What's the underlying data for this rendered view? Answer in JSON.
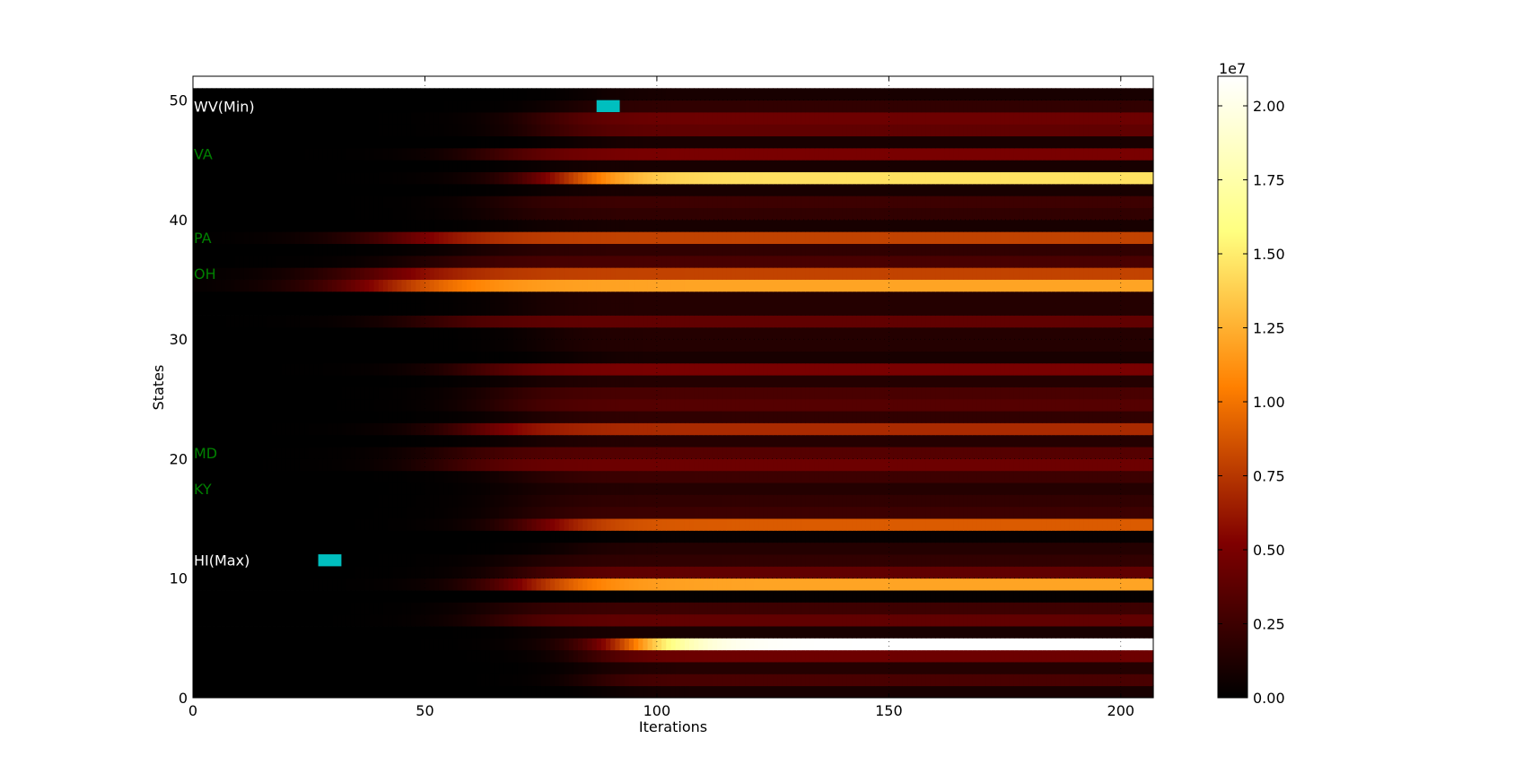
{
  "chart_data": {
    "type": "heatmap",
    "title": "",
    "xlabel": "Iterations",
    "ylabel": "States",
    "xlim": [
      0,
      207
    ],
    "ylim": [
      0,
      52
    ],
    "x_ticks": [
      "0",
      "50",
      "100",
      "150",
      "200"
    ],
    "y_ticks": [
      "0",
      "10",
      "20",
      "30",
      "40",
      "50"
    ],
    "grid": true,
    "colormap": "afmhot",
    "colorbar": {
      "exponent_label": "1e7",
      "min": 0,
      "max": 21000000,
      "ticks": [
        "0.00",
        "0.25",
        "0.50",
        "0.75",
        "1.00",
        "1.25",
        "1.50",
        "1.75",
        "2.00"
      ]
    },
    "rows": [
      {
        "state": 0,
        "final": 1000000,
        "onset": 90,
        "width": 30
      },
      {
        "state": 1,
        "final": 3000000,
        "onset": 85,
        "width": 30
      },
      {
        "state": 2,
        "final": 1500000,
        "onset": 85,
        "width": 30
      },
      {
        "state": 3,
        "final": 4500000,
        "onset": 85,
        "width": 30
      },
      {
        "state": 4,
        "final": 21000000,
        "onset": 95,
        "width": 40
      },
      {
        "state": 5,
        "final": 1000000,
        "onset": 75,
        "width": 30
      },
      {
        "state": 6,
        "final": 4000000,
        "onset": 65,
        "width": 40
      },
      {
        "state": 7,
        "final": 2500000,
        "onset": 65,
        "width": 40
      },
      {
        "state": 8,
        "final": 200000,
        "onset": 90,
        "width": 30
      },
      {
        "state": 9,
        "final": 12000000,
        "onset": 72,
        "width": 45
      },
      {
        "state": 10,
        "final": 4000000,
        "onset": 70,
        "width": 40
      },
      {
        "state": 11,
        "final": 2000000,
        "onset": 70,
        "width": 40
      },
      {
        "state": 12,
        "final": 1500000,
        "onset": 80,
        "width": 30
      },
      {
        "state": 13,
        "final": 300000,
        "onset": 90,
        "width": 30
      },
      {
        "state": 14,
        "final": 9000000,
        "onset": 75,
        "width": 40
      },
      {
        "state": 15,
        "final": 2500000,
        "onset": 70,
        "width": 40
      },
      {
        "state": 16,
        "final": 2000000,
        "onset": 70,
        "width": 40
      },
      {
        "state": 17,
        "final": 1500000,
        "onset": 70,
        "width": 40
      },
      {
        "state": 18,
        "final": 2500000,
        "onset": 70,
        "width": 40
      },
      {
        "state": 19,
        "final": 4500000,
        "onset": 55,
        "width": 45
      },
      {
        "state": 20,
        "final": 3500000,
        "onset": 55,
        "width": 45
      },
      {
        "state": 21,
        "final": 1500000,
        "onset": 70,
        "width": 40
      },
      {
        "state": 22,
        "final": 7000000,
        "onset": 60,
        "width": 45
      },
      {
        "state": 23,
        "final": 2000000,
        "onset": 70,
        "width": 40
      },
      {
        "state": 24,
        "final": 3500000,
        "onset": 65,
        "width": 40
      },
      {
        "state": 25,
        "final": 3000000,
        "onset": 65,
        "width": 40
      },
      {
        "state": 26,
        "final": 1500000,
        "onset": 70,
        "width": 40
      },
      {
        "state": 27,
        "final": 5000000,
        "onset": 60,
        "width": 45
      },
      {
        "state": 28,
        "final": 1000000,
        "onset": 80,
        "width": 30
      },
      {
        "state": 29,
        "final": 1500000,
        "onset": 75,
        "width": 35
      },
      {
        "state": 30,
        "final": 1500000,
        "onset": 75,
        "width": 35
      },
      {
        "state": 31,
        "final": 4000000,
        "onset": 50,
        "width": 50
      },
      {
        "state": 32,
        "final": 1500000,
        "onset": 70,
        "width": 40
      },
      {
        "state": 33,
        "final": 1500000,
        "onset": 70,
        "width": 40
      },
      {
        "state": 34,
        "final": 12000000,
        "onset": 40,
        "width": 60
      },
      {
        "state": 35,
        "final": 8000000,
        "onset": 40,
        "width": 60
      },
      {
        "state": 36,
        "final": 3000000,
        "onset": 50,
        "width": 50
      },
      {
        "state": 37,
        "final": 2000000,
        "onset": 60,
        "width": 45
      },
      {
        "state": 38,
        "final": 8000000,
        "onset": 45,
        "width": 55
      },
      {
        "state": 39,
        "final": 1000000,
        "onset": 70,
        "width": 40
      },
      {
        "state": 40,
        "final": 2000000,
        "onset": 65,
        "width": 40
      },
      {
        "state": 41,
        "final": 2500000,
        "onset": 65,
        "width": 40
      },
      {
        "state": 42,
        "final": 1000000,
        "onset": 75,
        "width": 35
      },
      {
        "state": 43,
        "final": 14500000,
        "onset": 80,
        "width": 45
      },
      {
        "state": 44,
        "final": 1000000,
        "onset": 75,
        "width": 35
      },
      {
        "state": 45,
        "final": 5000000,
        "onset": 65,
        "width": 45
      },
      {
        "state": 46,
        "final": 1000000,
        "onset": 80,
        "width": 30
      },
      {
        "state": 47,
        "final": 4000000,
        "onset": 75,
        "width": 40
      },
      {
        "state": 48,
        "final": 4500000,
        "onset": 75,
        "width": 40
      },
      {
        "state": 49,
        "final": 2000000,
        "onset": 80,
        "width": 35
      },
      {
        "state": 50,
        "final": 1000000,
        "onset": 85,
        "width": 30
      }
    ],
    "annotations": [
      {
        "text": "WV(Min)",
        "y": 49.5,
        "color": "#ffffff"
      },
      {
        "text": "VA",
        "y": 45.5,
        "color": "#008000"
      },
      {
        "text": "PA",
        "y": 38.5,
        "color": "#008000"
      },
      {
        "text": "OH",
        "y": 35.5,
        "color": "#008000"
      },
      {
        "text": "MD",
        "y": 20.5,
        "color": "#008000"
      },
      {
        "text": "KY",
        "y": 17.5,
        "color": "#008000"
      },
      {
        "text": "HI(Max)",
        "y": 11.5,
        "color": "#ffffff"
      }
    ],
    "markers": [
      {
        "x": [
          87,
          92
        ],
        "y": [
          49,
          50
        ],
        "color": "#00bfbf"
      },
      {
        "x": [
          27,
          32
        ],
        "y": [
          11,
          12
        ],
        "color": "#00bfbf"
      }
    ]
  }
}
